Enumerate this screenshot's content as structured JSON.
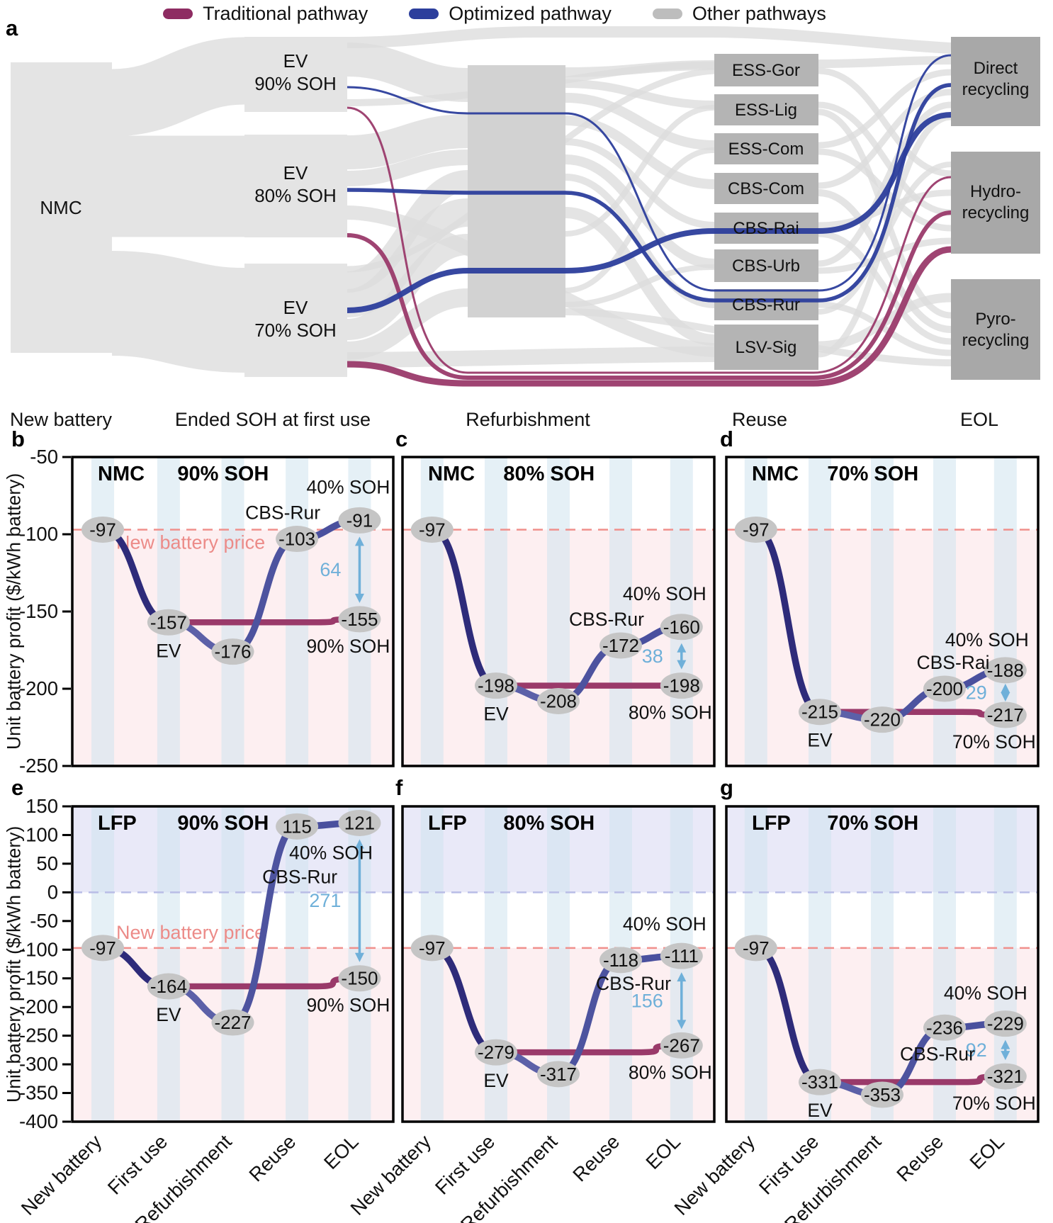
{
  "figure": {
    "panel_letters": {
      "a": "a",
      "b": "b",
      "c": "c",
      "d": "d",
      "e": "e",
      "f": "f",
      "g": "g"
    },
    "y_axis_label": "Unit battery profit ($/kWh battery)"
  },
  "legend": {
    "items": [
      {
        "label": "Traditional pathway",
        "color": "#8e2c62"
      },
      {
        "label": "Optimized pathway",
        "color": "#2c3e9c"
      },
      {
        "label": "Other pathways",
        "color": "#bdbdbd"
      }
    ]
  },
  "colors": {
    "traditional": "#8e2c62",
    "optimized": "#2c3e9c",
    "other": "#bdbdbd",
    "traditional_line": "#9a3a6a",
    "optimized_line_shades": [
      "#2e2b7a",
      "#5c60a8",
      "#4d539f",
      "#4a509e"
    ],
    "arrow": "#6fb0d9",
    "price_line": "#f0908c",
    "price_text": "#ec8b88",
    "zero_line": "#b9bde6",
    "marker_fill": "#c5c5c5",
    "stripe": "#cfe3ee",
    "pink_region": "#fdeff1",
    "lavender_region": "#e9e9f8"
  },
  "x_categories": [
    "New battery",
    "First use",
    "Refurbishment",
    "Reuse",
    "EOL"
  ],
  "chart_data": [
    {
      "type": "sankey",
      "panel": "a",
      "column_labels": [
        "New battery",
        "Ended SOH at first use",
        "Refurbishment",
        "Reuse",
        "EOL"
      ],
      "nodes": {
        "new_battery": [
          "NMC"
        ],
        "first_use": [
          [
            "EV",
            "90% SOH"
          ],
          [
            "EV",
            "80% SOH"
          ],
          [
            "EV",
            "70% SOH"
          ]
        ],
        "reuse": [
          "ESS-Gor",
          "ESS-Lig",
          "ESS-Com",
          "CBS-Com",
          "CBS-Rai",
          "CBS-Urb",
          "CBS-Rur",
          "LSV-Sig"
        ],
        "eol": [
          [
            "Direct",
            "recycling"
          ],
          [
            "Hydro-",
            "recycling"
          ],
          [
            "Pyro-",
            "recycling"
          ]
        ]
      },
      "highlighted_pathways": {
        "traditional": [
          {
            "route": [
              "EV 90% SOH",
              "Hydro-recycling"
            ]
          },
          {
            "route": [
              "EV 80% SOH",
              "Hydro-recycling"
            ]
          },
          {
            "route": [
              "EV 70% SOH",
              "Hydro-recycling"
            ]
          }
        ],
        "optimized": [
          {
            "route": [
              "EV 90% SOH",
              "Refurbishment",
              "CBS-Rur",
              "Direct recycling"
            ]
          },
          {
            "route": [
              "EV 80% SOH",
              "Refurbishment",
              "CBS-Rur",
              "Direct recycling"
            ]
          },
          {
            "route": [
              "EV 70% SOH",
              "Refurbishment",
              "CBS-Rai",
              "Direct recycling"
            ]
          }
        ]
      }
    },
    {
      "type": "line",
      "panel": "b",
      "chemistry": "NMC",
      "soh_title": "90% SOH",
      "x": [
        "New battery",
        "First use",
        "Refurbishment",
        "Reuse",
        "EOL"
      ],
      "ylim": [
        -250,
        -50
      ],
      "yticks": [
        -50,
        -100,
        -150,
        -200,
        -250
      ],
      "optimized": [
        -97,
        -157,
        -176,
        -103,
        -91
      ],
      "traditional": {
        "start": -157,
        "end": -155
      },
      "labels": {
        "first_use": "EV",
        "reuse": "CBS-Rur",
        "optimized_end": "40% SOH",
        "traditional_end": "90% SOH"
      },
      "difference": 64,
      "new_battery_price": -97,
      "price_label": "New battery price",
      "zero_line": false
    },
    {
      "type": "line",
      "panel": "c",
      "chemistry": "NMC",
      "soh_title": "80% SOH",
      "x": [
        "New battery",
        "First use",
        "Refurbishment",
        "Reuse",
        "EOL"
      ],
      "ylim": [
        -250,
        -50
      ],
      "yticks": [
        -50,
        -100,
        -150,
        -200,
        -250
      ],
      "optimized": [
        -97,
        -198,
        -208,
        -172,
        -160
      ],
      "traditional": {
        "start": -198,
        "end": -198
      },
      "labels": {
        "first_use": "EV",
        "reuse": "CBS-Rur",
        "optimized_end": "40% SOH",
        "traditional_end": "80% SOH"
      },
      "difference": 38,
      "new_battery_price": -97,
      "price_label": "",
      "zero_line": false
    },
    {
      "type": "line",
      "panel": "d",
      "chemistry": "NMC",
      "soh_title": "70% SOH",
      "x": [
        "New battery",
        "First use",
        "Refurbishment",
        "Reuse",
        "EOL"
      ],
      "ylim": [
        -250,
        -50
      ],
      "yticks": [
        -50,
        -100,
        -150,
        -200,
        -250
      ],
      "optimized": [
        -97,
        -215,
        -220,
        -200,
        -188
      ],
      "traditional": {
        "start": -215,
        "end": -217
      },
      "labels": {
        "first_use": "EV",
        "reuse": "CBS-Rai",
        "optimized_end": "40% SOH",
        "traditional_end": "70% SOH"
      },
      "difference": 29,
      "new_battery_price": -97,
      "price_label": "",
      "zero_line": false
    },
    {
      "type": "line",
      "panel": "e",
      "chemistry": "LFP",
      "soh_title": "90% SOH",
      "x": [
        "New battery",
        "First use",
        "Refurbishment",
        "Reuse",
        "EOL"
      ],
      "ylim": [
        -400,
        150
      ],
      "yticks": [
        150,
        100,
        50,
        0,
        -50,
        -100,
        -150,
        -200,
        -250,
        -300,
        -350,
        -400
      ],
      "optimized": [
        -97,
        -164,
        -227,
        115,
        121
      ],
      "traditional": {
        "start": -164,
        "end": -150
      },
      "labels": {
        "first_use": "EV",
        "reuse": "CBS-Rur",
        "optimized_end": "40% SOH",
        "traditional_end": "90% SOH"
      },
      "difference": 271,
      "new_battery_price": -97,
      "price_label": "New battery price",
      "zero_line": true
    },
    {
      "type": "line",
      "panel": "f",
      "chemistry": "LFP",
      "soh_title": "80% SOH",
      "x": [
        "New battery",
        "First use",
        "Refurbishment",
        "Reuse",
        "EOL"
      ],
      "ylim": [
        -400,
        150
      ],
      "yticks": [
        150,
        100,
        50,
        0,
        -50,
        -100,
        -150,
        -200,
        -250,
        -300,
        -350,
        -400
      ],
      "optimized": [
        -97,
        -279,
        -317,
        -118,
        -111
      ],
      "traditional": {
        "start": -279,
        "end": -267
      },
      "labels": {
        "first_use": "EV",
        "reuse": "CBS-Rur",
        "optimized_end": "40% SOH",
        "traditional_end": "80% SOH"
      },
      "difference": 156,
      "new_battery_price": -97,
      "price_label": "",
      "zero_line": true
    },
    {
      "type": "line",
      "panel": "g",
      "chemistry": "LFP",
      "soh_title": "70% SOH",
      "x": [
        "New battery",
        "First use",
        "Refurbishment",
        "Reuse",
        "EOL"
      ],
      "ylim": [
        -400,
        150
      ],
      "yticks": [
        150,
        100,
        50,
        0,
        -50,
        -100,
        -150,
        -200,
        -250,
        -300,
        -350,
        -400
      ],
      "optimized": [
        -97,
        -331,
        -353,
        -236,
        -229
      ],
      "traditional": {
        "start": -331,
        "end": -321
      },
      "labels": {
        "first_use": "EV",
        "reuse": "CBS-Rur",
        "optimized_end": "40% SOH",
        "traditional_end": "70% SOH"
      },
      "difference": 92,
      "new_battery_price": -97,
      "price_label": "",
      "zero_line": true
    }
  ]
}
